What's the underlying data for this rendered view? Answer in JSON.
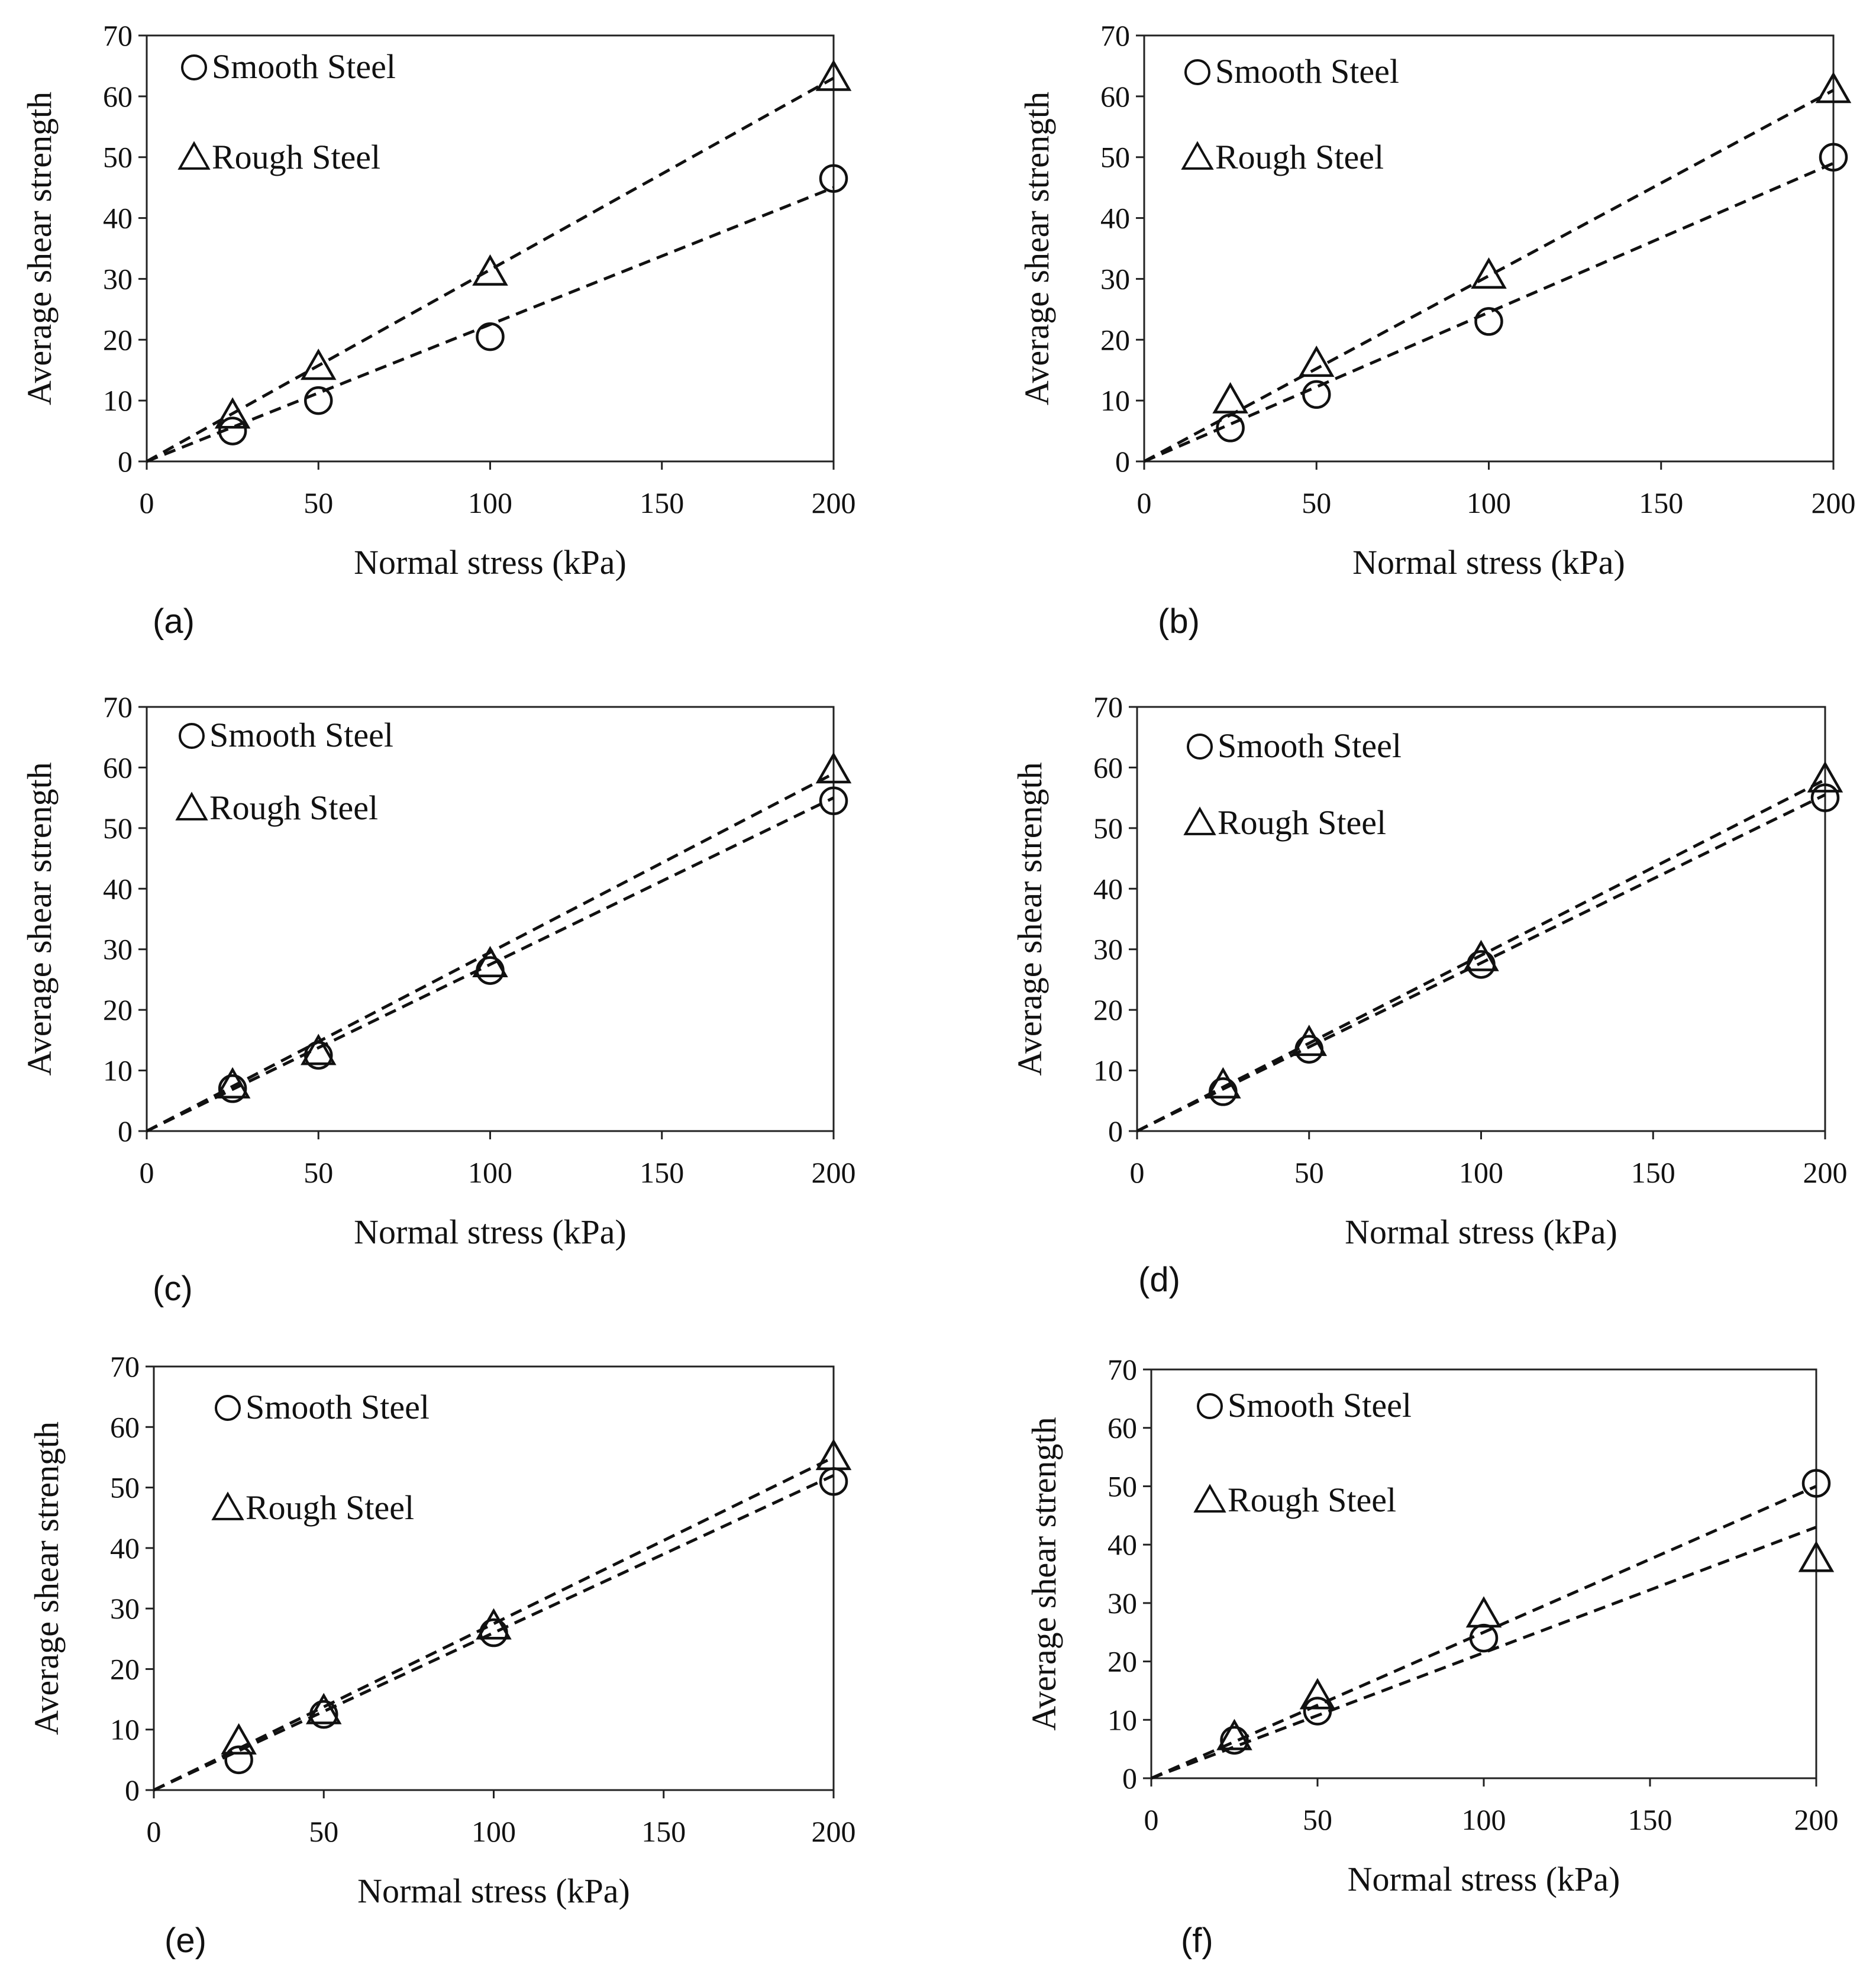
{
  "figure": {
    "panels": [
      {
        "label": "(a)"
      },
      {
        "label": "(b)"
      },
      {
        "label": "(c)"
      },
      {
        "label": "(d)"
      },
      {
        "label": "(e)"
      },
      {
        "label": "(f)"
      }
    ]
  },
  "chart_data": [
    {
      "panel": "(a)",
      "type": "scatter",
      "xlabel": "Normal stress (kPa)",
      "ylabel": "Average shear strength",
      "xlim": [
        0,
        200
      ],
      "ylim": [
        0,
        70
      ],
      "xticks": [
        0,
        50,
        100,
        150,
        200
      ],
      "yticks": [
        0,
        10,
        20,
        30,
        40,
        50,
        60,
        70
      ],
      "legend_position": "top-left",
      "series": [
        {
          "name": "Smooth Steel",
          "marker": "circle",
          "x": [
            25,
            50,
            100,
            200
          ],
          "y": [
            5,
            10,
            20.5,
            46.5
          ],
          "fit_line": {
            "x": [
              0,
              200
            ],
            "y": [
              0,
              45
            ]
          }
        },
        {
          "name": "Rough Steel",
          "marker": "triangle",
          "x": [
            25,
            50,
            100,
            200
          ],
          "y": [
            7.5,
            15.5,
            31,
            63
          ],
          "fit_line": {
            "x": [
              0,
              200
            ],
            "y": [
              0,
              63
            ]
          }
        }
      ]
    },
    {
      "panel": "(b)",
      "type": "scatter",
      "xlabel": "Normal stress (kPa)",
      "ylabel": "Average shear strength",
      "xlim": [
        0,
        200
      ],
      "ylim": [
        0,
        70
      ],
      "xticks": [
        0,
        50,
        100,
        150,
        200
      ],
      "yticks": [
        0,
        10,
        20,
        30,
        40,
        50,
        60,
        70
      ],
      "legend_position": "top-left",
      "series": [
        {
          "name": "Smooth Steel",
          "marker": "circle",
          "x": [
            25,
            50,
            100,
            200
          ],
          "y": [
            5.5,
            11,
            23,
            50
          ],
          "fit_line": {
            "x": [
              0,
              200
            ],
            "y": [
              0,
              49
            ]
          }
        },
        {
          "name": "Rough Steel",
          "marker": "triangle",
          "x": [
            25,
            50,
            100,
            200
          ],
          "y": [
            10,
            16,
            30.5,
            61
          ],
          "fit_line": {
            "x": [
              0,
              200
            ],
            "y": [
              0,
              61
            ]
          }
        }
      ]
    },
    {
      "panel": "(c)",
      "type": "scatter",
      "xlabel": "Normal stress (kPa)",
      "ylabel": "Average shear strength",
      "xlim": [
        0,
        200
      ],
      "ylim": [
        0,
        70
      ],
      "xticks": [
        0,
        50,
        100,
        150,
        200
      ],
      "yticks": [
        0,
        10,
        20,
        30,
        40,
        50,
        60,
        70
      ],
      "legend_position": "top-left",
      "series": [
        {
          "name": "Smooth Steel",
          "marker": "circle",
          "x": [
            25,
            50,
            100,
            200
          ],
          "y": [
            7,
            12.5,
            26.5,
            54.5
          ],
          "fit_line": {
            "x": [
              0,
              200
            ],
            "y": [
              0,
              55
            ]
          }
        },
        {
          "name": "Rough Steel",
          "marker": "triangle",
          "x": [
            25,
            50,
            100,
            200
          ],
          "y": [
            7.5,
            13,
            27.5,
            59.5
          ],
          "fit_line": {
            "x": [
              0,
              200
            ],
            "y": [
              0,
              59
            ]
          }
        }
      ]
    },
    {
      "panel": "(d)",
      "type": "scatter",
      "xlabel": "Normal stress (kPa)",
      "ylabel": "Average shear strength",
      "xlim": [
        0,
        200
      ],
      "ylim": [
        0,
        70
      ],
      "xticks": [
        0,
        50,
        100,
        150,
        200
      ],
      "yticks": [
        0,
        10,
        20,
        30,
        40,
        50,
        60,
        70
      ],
      "legend_position": "top-left",
      "series": [
        {
          "name": "Smooth Steel",
          "marker": "circle",
          "x": [
            25,
            50,
            100,
            200
          ],
          "y": [
            6.5,
            13.5,
            27.5,
            55
          ],
          "fit_line": {
            "x": [
              0,
              200
            ],
            "y": [
              0,
              55.5
            ]
          }
        },
        {
          "name": "Rough Steel",
          "marker": "triangle",
          "x": [
            25,
            50,
            100,
            200
          ],
          "y": [
            7.5,
            14.5,
            28.5,
            58
          ],
          "fit_line": {
            "x": [
              0,
              200
            ],
            "y": [
              0,
              58
            ]
          }
        }
      ]
    },
    {
      "panel": "(e)",
      "type": "scatter",
      "xlabel": "Normal stress (kPa)",
      "ylabel": "Average shear strength",
      "xlim": [
        0,
        200
      ],
      "ylim": [
        0,
        70
      ],
      "xticks": [
        0,
        50,
        100,
        150,
        200
      ],
      "yticks": [
        0,
        10,
        20,
        30,
        40,
        50,
        60,
        70
      ],
      "legend_position": "top-left",
      "series": [
        {
          "name": "Smooth Steel",
          "marker": "circle",
          "x": [
            25,
            50,
            100,
            200
          ],
          "y": [
            5,
            12.5,
            26,
            51
          ],
          "fit_line": {
            "x": [
              0,
              200
            ],
            "y": [
              0,
              52
            ]
          }
        },
        {
          "name": "Rough Steel",
          "marker": "triangle",
          "x": [
            25,
            50,
            100,
            200
          ],
          "y": [
            8,
            13,
            27,
            55
          ],
          "fit_line": {
            "x": [
              0,
              200
            ],
            "y": [
              0,
              55
            ]
          }
        }
      ]
    },
    {
      "panel": "(f)",
      "type": "scatter",
      "xlabel": "Normal stress (kPa)",
      "ylabel": "Average shear strength",
      "xlim": [
        0,
        200
      ],
      "ylim": [
        0,
        70
      ],
      "xticks": [
        0,
        50,
        100,
        150,
        200
      ],
      "yticks": [
        0,
        10,
        20,
        30,
        40,
        50,
        60,
        70
      ],
      "legend_position": "top-left",
      "series": [
        {
          "name": "Smooth Steel",
          "marker": "circle",
          "x": [
            25,
            50,
            100,
            200
          ],
          "y": [
            6.5,
            11.5,
            24,
            50.5
          ],
          "fit_line": {
            "x": [
              0,
              200
            ],
            "y": [
              0,
              50
            ]
          }
        },
        {
          "name": "Rough Steel",
          "marker": "triangle",
          "x": [
            25,
            50,
            100,
            200
          ],
          "y": [
            7,
            14,
            28,
            37.5
          ],
          "fit_line": {
            "x": [
              0,
              200
            ],
            "y": [
              0,
              43
            ]
          }
        }
      ]
    }
  ]
}
